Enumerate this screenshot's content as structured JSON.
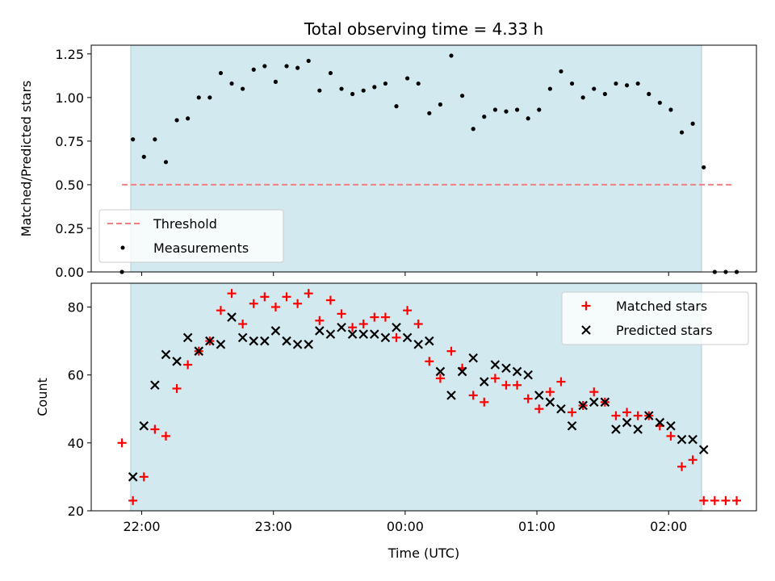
{
  "colors": {
    "span": "#d3e9f0",
    "span_edge": "#a9cfdc",
    "threshold": "#f08080",
    "measurement": "#000000",
    "matched": "#ff0000",
    "predicted": "#000000"
  },
  "chart_data": [
    {
      "type": "scatter",
      "title": "Total observing time = 4.33 h",
      "xlabel": "",
      "ylabel": "Matched/Predicted stars",
      "ylim": [
        0,
        1.3
      ],
      "yticks": [
        0.0,
        0.25,
        0.5,
        0.75,
        1.0,
        1.25
      ],
      "ytick_labels": [
        "0.00",
        "0.25",
        "0.50",
        "0.75",
        "1.00",
        "1.25"
      ],
      "xlim_minutes": [
        -23,
        280
      ],
      "xticks_minutes": [
        0,
        60,
        120,
        180,
        240
      ],
      "observing_span": [
        "21:55",
        "02:15"
      ],
      "legend": {
        "position": "lower left",
        "entries": [
          "Threshold",
          "Measurements"
        ]
      },
      "threshold": {
        "name": "Threshold",
        "value": 0.5,
        "x_range": [
          "21:51",
          "02:30"
        ]
      },
      "series": [
        {
          "name": "Measurements",
          "marker": "dot",
          "x": [
            "21:51",
            "21:56",
            "22:01",
            "22:06",
            "22:11",
            "22:16",
            "22:21",
            "22:26",
            "22:31",
            "22:36",
            "22:41",
            "22:46",
            "22:51",
            "22:56",
            "23:01",
            "23:06",
            "23:11",
            "23:16",
            "23:21",
            "23:26",
            "23:31",
            "23:36",
            "23:41",
            "23:46",
            "23:51",
            "23:56",
            "00:01",
            "00:06",
            "00:11",
            "00:16",
            "00:21",
            "00:26",
            "00:31",
            "00:36",
            "00:41",
            "00:46",
            "00:51",
            "00:56",
            "01:01",
            "01:06",
            "01:11",
            "01:16",
            "01:21",
            "01:26",
            "01:31",
            "01:36",
            "01:41",
            "01:46",
            "01:51",
            "01:56",
            "02:01",
            "02:06",
            "02:11",
            "02:16",
            "02:21",
            "02:26",
            "02:31"
          ],
          "y": [
            0.0,
            0.76,
            0.66,
            0.76,
            0.63,
            0.87,
            0.88,
            1.0,
            1.0,
            1.14,
            1.08,
            1.05,
            1.16,
            1.18,
            1.09,
            1.18,
            1.17,
            1.21,
            1.04,
            1.14,
            1.05,
            1.02,
            1.04,
            1.06,
            1.08,
            0.95,
            1.11,
            1.08,
            0.91,
            0.96,
            1.24,
            1.01,
            0.82,
            0.89,
            0.93,
            0.92,
            0.93,
            0.88,
            0.93,
            1.05,
            1.15,
            1.08,
            1.0,
            1.05,
            1.02,
            1.08,
            1.07,
            1.08,
            1.02,
            0.97,
            0.93,
            0.8,
            0.85,
            0.6,
            0.0,
            0.0,
            0.0
          ]
        }
      ]
    },
    {
      "type": "scatter",
      "title": "",
      "xlabel": "Time (UTC)",
      "ylabel": "Count",
      "ylim": [
        20,
        87
      ],
      "yticks": [
        20,
        40,
        60,
        80
      ],
      "ytick_labels": [
        "20",
        "40",
        "60",
        "80"
      ],
      "xlim_minutes": [
        -23,
        280
      ],
      "xticks_minutes": [
        0,
        60,
        120,
        180,
        240
      ],
      "xtick_labels": [
        "22:00",
        "23:00",
        "00:00",
        "01:00",
        "02:00"
      ],
      "observing_span": [
        "21:55",
        "02:15"
      ],
      "legend": {
        "position": "upper right",
        "entries": [
          "Matched stars",
          "Predicted stars"
        ]
      },
      "series": [
        {
          "name": "Matched stars",
          "marker": "plus",
          "x": [
            "21:51",
            "21:56",
            "22:01",
            "22:06",
            "22:11",
            "22:16",
            "22:21",
            "22:26",
            "22:31",
            "22:36",
            "22:41",
            "22:46",
            "22:51",
            "22:56",
            "23:01",
            "23:06",
            "23:11",
            "23:16",
            "23:21",
            "23:26",
            "23:31",
            "23:36",
            "23:41",
            "23:46",
            "23:51",
            "23:56",
            "00:01",
            "00:06",
            "00:11",
            "00:16",
            "00:21",
            "00:26",
            "00:31",
            "00:36",
            "00:41",
            "00:46",
            "00:51",
            "00:56",
            "01:01",
            "01:06",
            "01:11",
            "01:16",
            "01:21",
            "01:26",
            "01:31",
            "01:36",
            "01:41",
            "01:46",
            "01:51",
            "01:56",
            "02:01",
            "02:06",
            "02:11",
            "02:16",
            "02:21",
            "02:26",
            "02:31"
          ],
          "y": [
            40,
            23,
            30,
            44,
            42,
            56,
            63,
            67,
            70,
            79,
            84,
            75,
            81,
            83,
            80,
            83,
            81,
            84,
            76,
            82,
            78,
            74,
            75,
            77,
            77,
            71,
            79,
            75,
            64,
            59,
            67,
            62,
            54,
            52,
            59,
            57,
            57,
            53,
            50,
            55,
            58,
            49,
            51,
            55,
            52,
            48,
            49,
            48,
            48,
            45,
            42,
            33,
            35,
            23,
            23,
            23,
            23
          ]
        },
        {
          "name": "Predicted stars",
          "marker": "x",
          "x": [
            "21:56",
            "22:01",
            "22:06",
            "22:11",
            "22:16",
            "22:21",
            "22:26",
            "22:31",
            "22:36",
            "22:41",
            "22:46",
            "22:51",
            "22:56",
            "23:01",
            "23:06",
            "23:11",
            "23:16",
            "23:21",
            "23:26",
            "23:31",
            "23:36",
            "23:41",
            "23:46",
            "23:51",
            "23:56",
            "00:01",
            "00:06",
            "00:11",
            "00:16",
            "00:21",
            "00:26",
            "00:31",
            "00:36",
            "00:41",
            "00:46",
            "00:51",
            "00:56",
            "01:01",
            "01:06",
            "01:11",
            "01:16",
            "01:21",
            "01:26",
            "01:31",
            "01:36",
            "01:41",
            "01:46",
            "01:51",
            "01:56",
            "02:01",
            "02:06",
            "02:11",
            "02:16"
          ],
          "y": [
            30,
            45,
            57,
            66,
            64,
            71,
            67,
            70,
            69,
            77,
            71,
            70,
            70,
            73,
            70,
            69,
            69,
            73,
            72,
            74,
            72,
            72,
            72,
            71,
            74,
            71,
            69,
            70,
            61,
            54,
            61,
            65,
            58,
            63,
            62,
            61,
            60,
            54,
            52,
            50,
            45,
            51,
            52,
            52,
            44,
            46,
            44,
            48,
            46,
            45,
            41,
            41,
            38
          ]
        }
      ]
    }
  ]
}
